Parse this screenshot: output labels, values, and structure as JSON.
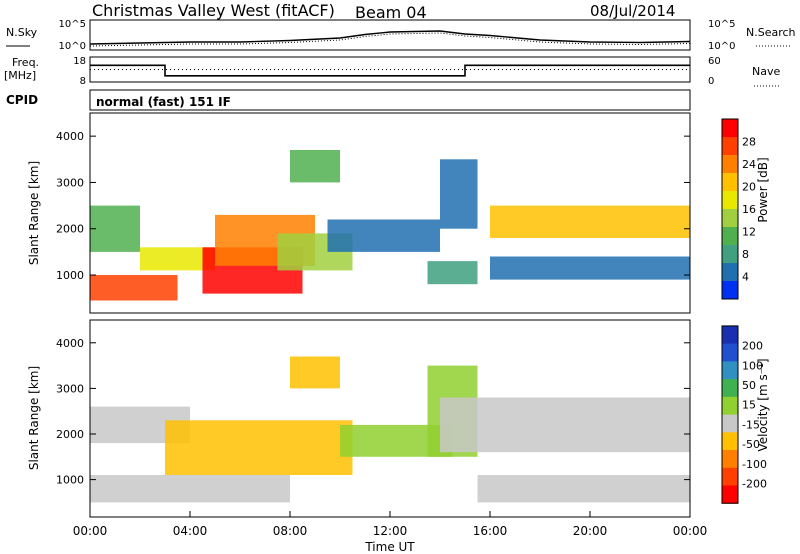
{
  "header": {
    "station": "Christmas Valley West (fitACF)",
    "beam": "Beam 04",
    "date": "08/Jul/2014"
  },
  "strip_labels": {
    "nsky": "N.Sky",
    "nsearch": "N.Search",
    "freq": "Freq.",
    "freq_unit": "[MHz]",
    "nave": "Nave",
    "cpid": "CPID",
    "cpid_value": "normal (fast) 151 IF"
  },
  "chart_data": [
    {
      "type": "line",
      "name": "noise",
      "ylabel_left": "N.Sky",
      "ylabel_right": "N.Search",
      "left_ticks": [
        "10^5",
        "10^0"
      ],
      "right_ticks": [
        "10^5",
        "10^0"
      ],
      "x": [
        0,
        2,
        4,
        6,
        8,
        10,
        11,
        12,
        13,
        14,
        15,
        16,
        18,
        20,
        22,
        24
      ],
      "log_values": [
        0.6,
        0.8,
        1.0,
        1.0,
        1.3,
        1.8,
        2.5,
        3.0,
        3.1,
        3.2,
        2.6,
        2.3,
        1.4,
        1.0,
        0.9,
        1.1
      ]
    },
    {
      "type": "line",
      "name": "frequency-nave",
      "ylabel_left": "Freq. [MHz]",
      "ylabel_right": "Nave",
      "left_ticks": [
        "18",
        "8"
      ],
      "right_ticks": [
        "60",
        "0"
      ],
      "freq_steps": [
        {
          "x0": 0,
          "x1": 3,
          "value": 15
        },
        {
          "x0": 3,
          "x1": 15,
          "value": 10
        },
        {
          "x0": 15,
          "x1": 24,
          "value": 15
        }
      ],
      "nave": 30
    },
    {
      "type": "heatmap",
      "name": "power",
      "ylabel": "Slant Range [km]",
      "xlim": [
        0,
        24
      ],
      "ylim": [
        180,
        4500
      ],
      "yticks": [
        1000,
        2000,
        3000,
        4000
      ],
      "colorbar_label": "Power [dB]",
      "colorbar_ticks": [
        "28",
        "24",
        "20",
        "16",
        "12",
        "8",
        "4"
      ],
      "colors": [
        "#ff0000",
        "#ff4000",
        "#ff8000",
        "#ffc000",
        "#e8e800",
        "#a0d040",
        "#50b050",
        "#40a080",
        "#2070b0",
        "#0030f0"
      ],
      "bands": [
        {
          "x0": 0.0,
          "x1": 3.5,
          "r0": 450,
          "r1": 1000,
          "level": 1
        },
        {
          "x0": 0.0,
          "x1": 2.0,
          "r0": 1500,
          "r1": 2500,
          "level": 6
        },
        {
          "x0": 2.0,
          "x1": 5.0,
          "r0": 1100,
          "r1": 1600,
          "level": 4
        },
        {
          "x0": 4.5,
          "x1": 8.5,
          "r0": 600,
          "r1": 1600,
          "level": 0
        },
        {
          "x0": 5.0,
          "x1": 9.0,
          "r0": 1200,
          "r1": 2300,
          "level": 2
        },
        {
          "x0": 7.5,
          "x1": 10.5,
          "r0": 1100,
          "r1": 1900,
          "level": 5
        },
        {
          "x0": 8.0,
          "x1": 10.0,
          "r0": 3000,
          "r1": 3700,
          "level": 6
        },
        {
          "x0": 9.5,
          "x1": 14.0,
          "r0": 1500,
          "r1": 2200,
          "level": 8
        },
        {
          "x0": 13.5,
          "x1": 15.5,
          "r0": 800,
          "r1": 1300,
          "level": 7
        },
        {
          "x0": 14.0,
          "x1": 15.5,
          "r0": 2000,
          "r1": 3500,
          "level": 8
        },
        {
          "x0": 16.0,
          "x1": 24.0,
          "r0": 1800,
          "r1": 2500,
          "level": 3
        },
        {
          "x0": 16.0,
          "x1": 24.0,
          "r0": 900,
          "r1": 1400,
          "level": 8
        }
      ]
    },
    {
      "type": "heatmap",
      "name": "velocity",
      "ylabel": "Slant Range [km]",
      "xlabel": "Time UT",
      "xlim": [
        0,
        24
      ],
      "ylim": [
        180,
        4500
      ],
      "yticks": [
        1000,
        2000,
        3000,
        4000
      ],
      "xticks": [
        "00:00",
        "04:00",
        "08:00",
        "12:00",
        "16:00",
        "20:00",
        "00:00"
      ],
      "colorbar_label": "Velocity [m s⁻¹]",
      "colorbar_ticks": [
        "200",
        "100",
        "50",
        "15",
        "-15",
        "-50",
        "-100",
        "-200"
      ],
      "colors": [
        "#1830b0",
        "#2050d0",
        "#3090c0",
        "#40b050",
        "#90d030",
        "#c8c8c8",
        "#ffc000",
        "#ff8000",
        "#ff4000",
        "#ff0000"
      ],
      "bands": [
        {
          "x0": 0.0,
          "x1": 8.0,
          "r0": 500,
          "r1": 1100,
          "level": 5
        },
        {
          "x0": 0.0,
          "x1": 4.0,
          "r0": 1800,
          "r1": 2600,
          "level": 5
        },
        {
          "x0": 3.0,
          "x1": 10.5,
          "r0": 1100,
          "r1": 2300,
          "level": 6
        },
        {
          "x0": 8.0,
          "x1": 10.0,
          "r0": 3000,
          "r1": 3700,
          "level": 6
        },
        {
          "x0": 10.0,
          "x1": 14.5,
          "r0": 1500,
          "r1": 2200,
          "level": 4
        },
        {
          "x0": 13.5,
          "x1": 15.5,
          "r0": 1500,
          "r1": 3500,
          "level": 4
        },
        {
          "x0": 14.0,
          "x1": 24.0,
          "r0": 1600,
          "r1": 2800,
          "level": 5
        },
        {
          "x0": 15.5,
          "x1": 24.0,
          "r0": 500,
          "r1": 1100,
          "level": 5
        }
      ]
    }
  ]
}
